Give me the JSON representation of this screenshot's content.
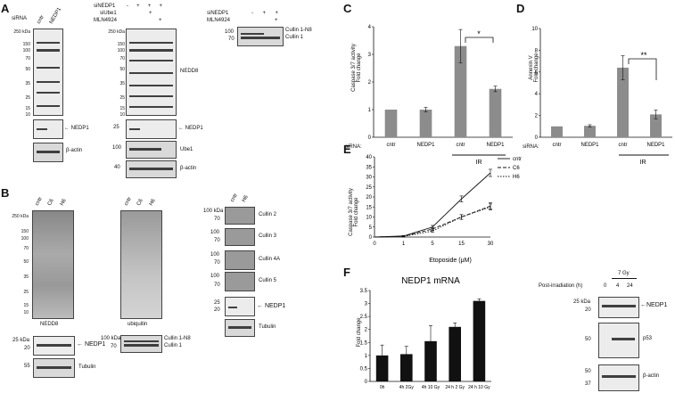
{
  "panels": {
    "A": "A",
    "B": "B",
    "C": "C",
    "D": "D",
    "E": "E",
    "F": "F"
  },
  "panelA": {
    "sirna_label": "siRNA",
    "lanes_left": [
      "cntr",
      "NEDP1"
    ],
    "mw_left": [
      "250 kDa",
      "150",
      "100",
      "70",
      "50",
      "35",
      "25",
      "15",
      "10"
    ],
    "left_ab1": "← NEDP1",
    "left_ab2": "β-actin",
    "row_sinedp1": "siNEDP1",
    "row_siube1": "siUbe1",
    "row_mln": "MLN4924",
    "signs_sinedp1": [
      "-",
      "+",
      "+",
      "+"
    ],
    "signs_siube1": [
      "",
      "",
      "+",
      ""
    ],
    "signs_mln": [
      "",
      "",
      "",
      "+"
    ],
    "mw_mid": [
      "250 kDa",
      "150",
      "100",
      "70",
      "50",
      "35",
      "25",
      "15",
      "10"
    ],
    "mid_ab1": "NEDD8",
    "mid_ab2": "← NEDP1",
    "mid_ab3": "Ube1",
    "mid_ab4": "β-actin",
    "right_row1": "siNEDP1",
    "right_row2": "MLN4924",
    "right_signs1": [
      "-",
      "+",
      "+"
    ],
    "right_signs2": [
      "",
      "",
      "+"
    ],
    "right_mw": [
      "100",
      "70"
    ],
    "right_lab1": "Cullin 1-N8",
    "right_lab2": "Cullin 1"
  },
  "panelB": {
    "lanes1": [
      "cntr",
      "C6",
      "H6"
    ],
    "mw1": [
      "250 kDa",
      "150",
      "100",
      "70",
      "50",
      "35",
      "25",
      "15",
      "10"
    ],
    "lab1": "NEDD8",
    "lanes2": [
      "cntr",
      "C6",
      "H6"
    ],
    "lab2": "ubiquitin",
    "lanes3": [
      "cntr",
      "H6"
    ],
    "cullins": [
      "Cullin 2",
      "Cullin 3",
      "Cullin 4A",
      "Cullin 5"
    ],
    "cullin_mw": [
      [
        "100 kDa",
        "70"
      ],
      [
        "100",
        "70"
      ],
      [
        "100",
        "70"
      ],
      [
        "100",
        "70"
      ]
    ],
    "nedp1_mw": [
      "25",
      "20"
    ],
    "lab_nedp1": "NEDP1",
    "lab_tubulin": "Tubulin",
    "lower_mw1": [
      "25 kDa",
      "20"
    ],
    "lower_lab1": "NEDP1",
    "lower_mw2": [
      "55"
    ],
    "lower_lab2": "Tubulin",
    "lower_mw3": [
      "100 kDa",
      "70"
    ],
    "lower_lab3a": "Cullin 1-N8",
    "lower_lab3b": "Cullin 1"
  },
  "panelC": {
    "ylabel_line1": "Caspase 3/7 activity",
    "ylabel_line2": "Fold change",
    "sirna": "siRNA:",
    "treatment": "IR",
    "sig": "*"
  },
  "panelD": {
    "ylabel_line1": "Annexin V",
    "ylabel_line2": "Fold change",
    "sirna": "siRNA:",
    "treatment": "IR",
    "sig": "**"
  },
  "panelE": {
    "ylabel_line1": "Caspase 3/7 activity",
    "ylabel_line2": "Fold change",
    "xlabel": "Etoposide (μM)"
  },
  "panelF": {
    "title": "NEDP1 mRNA",
    "ylabel": "Fold change",
    "post_label": "Post-irradiation (h)",
    "dose_label": "7 Gy",
    "times": [
      "0",
      "4",
      "24"
    ],
    "mw1": [
      "25 kDa",
      "20"
    ],
    "lab1": "←NEDP1",
    "mw2": [
      "50"
    ],
    "lab2": "p53",
    "mw3": [
      "50",
      "37"
    ],
    "lab3": "β-actin"
  },
  "chart_data": [
    {
      "type": "bar",
      "panel": "C",
      "categories": [
        "cntr",
        "NEDP1",
        "cntr",
        "NEDP1"
      ],
      "values": [
        1.0,
        1.0,
        3.3,
        1.75
      ],
      "errors": [
        0,
        0.08,
        0.6,
        0.1
      ],
      "ylim": [
        0,
        4
      ],
      "yticks": [
        0,
        1,
        2,
        3,
        4
      ],
      "ylabel": "Caspase 3/7 activity Fold change"
    },
    {
      "type": "bar",
      "panel": "D",
      "categories": [
        "cntr",
        "NEDP1",
        "cntr",
        "NEDP1"
      ],
      "values": [
        1.0,
        1.05,
        6.4,
        2.1
      ],
      "errors": [
        0,
        0.1,
        1.1,
        0.4
      ],
      "ylim": [
        0,
        10
      ],
      "yticks": [
        0,
        2,
        4,
        6,
        8,
        10
      ],
      "ylabel": "Annexin V Fold change"
    },
    {
      "type": "line",
      "panel": "E",
      "x": [
        0,
        1,
        5,
        15,
        30
      ],
      "xticks": [
        "0",
        "1",
        "5",
        "15",
        "30"
      ],
      "ylim": [
        0,
        40
      ],
      "yticks": [
        0,
        5,
        10,
        15,
        20,
        25,
        30,
        35,
        40
      ],
      "series": [
        {
          "name": "cntr",
          "values": [
            0,
            0.5,
            5,
            19,
            32
          ],
          "errors": [
            0,
            0.3,
            0.8,
            1.5,
            1.8
          ]
        },
        {
          "name": "C6",
          "values": [
            0,
            0.4,
            4,
            10,
            15.5
          ],
          "errors": [
            0,
            0.3,
            0.7,
            1.2,
            1.6
          ]
        },
        {
          "name": "H6",
          "values": [
            0,
            0.3,
            3,
            10,
            15
          ],
          "errors": [
            0,
            0.3,
            0.6,
            1.2,
            1.5
          ]
        }
      ]
    },
    {
      "type": "bar",
      "panel": "F",
      "title": "NEDP1 mRNA",
      "categories": [
        "0h",
        "4h 2Gy",
        "4h 10 Gy",
        "24 h 2 Gy",
        "24 h 10 Gy"
      ],
      "values": [
        1.0,
        1.05,
        1.55,
        2.1,
        3.1
      ],
      "errors": [
        0.4,
        0.3,
        0.6,
        0.15,
        0.08
      ],
      "ylim": [
        0,
        3.5
      ],
      "yticks": [
        0,
        0.5,
        1,
        1.5,
        2,
        2.5,
        3,
        3.5
      ],
      "ylabel": "Fold change"
    }
  ]
}
